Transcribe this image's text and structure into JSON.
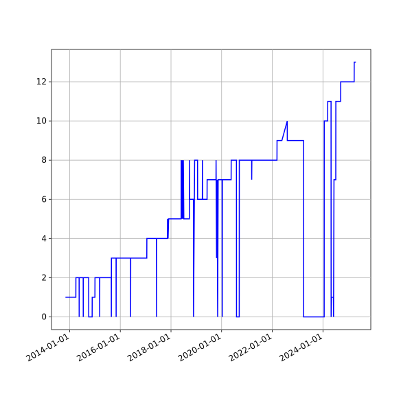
{
  "chart_data": {
    "type": "line",
    "color": "#0000ff",
    "grid": true,
    "x": [
      "2013-11-01",
      "2014-03-31",
      "2014-04-01",
      "2014-05-17",
      "2014-05-18",
      "2014-05-19",
      "2014-07-15",
      "2014-07-16",
      "2014-07-17",
      "2014-10-02",
      "2014-10-03",
      "2014-11-21",
      "2014-11-22",
      "2014-12-31",
      "2015-01-01",
      "2015-03-09",
      "2015-03-10",
      "2015-03-11",
      "2015-08-24",
      "2015-08-25",
      "2015-08-26",
      "2015-11-01",
      "2015-11-02",
      "2015-11-03",
      "2016-05-28",
      "2016-05-29",
      "2016-05-30",
      "2017-01-17",
      "2017-01-18",
      "2017-06-05",
      "2017-06-06",
      "2017-06-07",
      "2017-11-11",
      "2017-11-12",
      "2017-11-20",
      "2017-11-28",
      "2018-05-27",
      "2018-05-28",
      "2018-06-05",
      "2018-06-12",
      "2018-06-20",
      "2018-06-28",
      "2018-07-05",
      "2018-09-23",
      "2018-09-24",
      "2018-09-26",
      "2018-11-21",
      "2018-11-22",
      "2018-12-08",
      "2019-01-19",
      "2019-01-20",
      "2019-03-29",
      "2019-03-30",
      "2019-04-01",
      "2019-06-05",
      "2019-06-06",
      "2019-10-12",
      "2019-10-13",
      "2019-10-20",
      "2019-10-28",
      "2019-11-05",
      "2019-11-12",
      "2020-01-08",
      "2020-01-10",
      "2020-01-12",
      "2020-05-17",
      "2020-05-18",
      "2020-08-02",
      "2020-08-03",
      "2020-09-11",
      "2020-09-12",
      "2021-03-09",
      "2021-03-10",
      "2021-03-12",
      "2022-03-09",
      "2022-03-10",
      "2022-05-19",
      "2022-08-04",
      "2022-08-05",
      "2023-03-27",
      "2023-03-28",
      "2024-01-19",
      "2024-01-20",
      "2024-03-09",
      "2024-03-10",
      "2024-04-27",
      "2024-04-28",
      "2024-05-03",
      "2024-06-01",
      "2024-06-02",
      "2024-06-08",
      "2024-07-04",
      "2024-07-05",
      "2024-09-12",
      "2024-09-13",
      "2025-03-26",
      "2025-03-27",
      "2025-04-20"
    ],
    "y": [
      1,
      1,
      2,
      2,
      0,
      2,
      2,
      0,
      2,
      2,
      0,
      0,
      1,
      1,
      2,
      2,
      0,
      2,
      2,
      0,
      3,
      3,
      0,
      3,
      3,
      0,
      3,
      3,
      4,
      4,
      0,
      4,
      4,
      5,
      4,
      5,
      5,
      8,
      5,
      8,
      5,
      8,
      5,
      5,
      8,
      6,
      6,
      0,
      8,
      8,
      6,
      6,
      8,
      6,
      6,
      7,
      7,
      8,
      3,
      7,
      0,
      7,
      7,
      0,
      7,
      7,
      8,
      8,
      0,
      0,
      8,
      8,
      7,
      8,
      8,
      9,
      9,
      10,
      9,
      9,
      0,
      0,
      10,
      10,
      11,
      11,
      0,
      1,
      1,
      0,
      7,
      7,
      11,
      11,
      12,
      12,
      13,
      13
    ],
    "xlim": [
      "2013-04-14",
      "2025-11-21"
    ],
    "xticks": [
      "2014-01-01",
      "2016-01-01",
      "2018-01-01",
      "2020-01-01",
      "2022-01-01",
      "2024-01-01"
    ],
    "ylim": [
      -0.65,
      13.65
    ],
    "yticks": [
      0,
      2,
      4,
      6,
      8,
      10,
      12
    ]
  }
}
